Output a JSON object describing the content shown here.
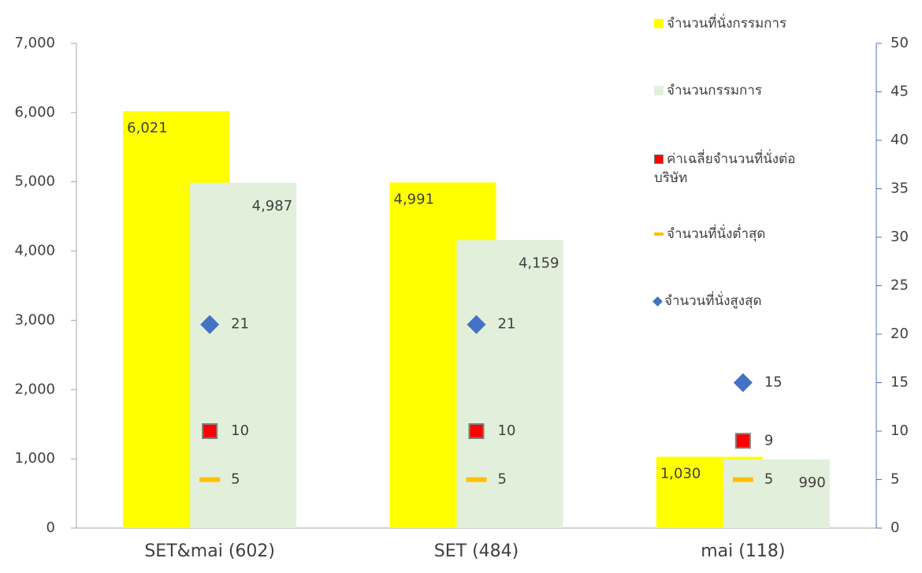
{
  "chart_data": {
    "type": "bar",
    "categories": [
      "SET&mai (602)",
      "SET (484)",
      "mai (118)"
    ],
    "series": [
      {
        "name": "จำนวนที่นั่งกรรมการ",
        "type": "bar",
        "color": "#ffff00",
        "values": [
          6021,
          4991,
          1030
        ],
        "value_labels": [
          "6,021",
          "4,991",
          "1,030"
        ]
      },
      {
        "name": "จำนวนกรรมการ",
        "type": "bar",
        "color": "#e2efda",
        "values": [
          4987,
          4159,
          990
        ],
        "value_labels": [
          "4,987",
          "4,159",
          "990"
        ]
      },
      {
        "name": "ค่าเฉลี่ยจำนวนที่นั่งต่อบริษัท",
        "type": "square",
        "color": "#ff0000",
        "axis": "y2",
        "values": [
          10,
          10,
          9
        ]
      },
      {
        "name": "จำนวนที่นั่งต่ำสุด",
        "type": "dash",
        "color": "#ffc000",
        "axis": "y2",
        "values": [
          5,
          5,
          5
        ]
      },
      {
        "name": "จำนวนที่นั่งสูงสุด",
        "type": "diamond",
        "color": "#4472c4",
        "axis": "y2",
        "values": [
          21,
          21,
          15
        ]
      }
    ],
    "ylim": [
      0,
      7000
    ],
    "yticks": [
      0,
      {
        "value": 1000,
        "label": "1,000"
      },
      {
        "value": 2000,
        "label": "2,000"
      },
      {
        "value": 3000,
        "label": "3,000"
      },
      {
        "value": 4000,
        "label": "4,000"
      },
      {
        "value": 5000,
        "label": "5,000"
      },
      {
        "value": 6000,
        "label": "6,000"
      },
      {
        "value": 7000,
        "label": "7,000"
      }
    ],
    "y2lim": [
      0,
      50
    ],
    "y2ticks": [
      0,
      5,
      10,
      15,
      20,
      25,
      30,
      35,
      40,
      45,
      50
    ],
    "legend": "right"
  }
}
